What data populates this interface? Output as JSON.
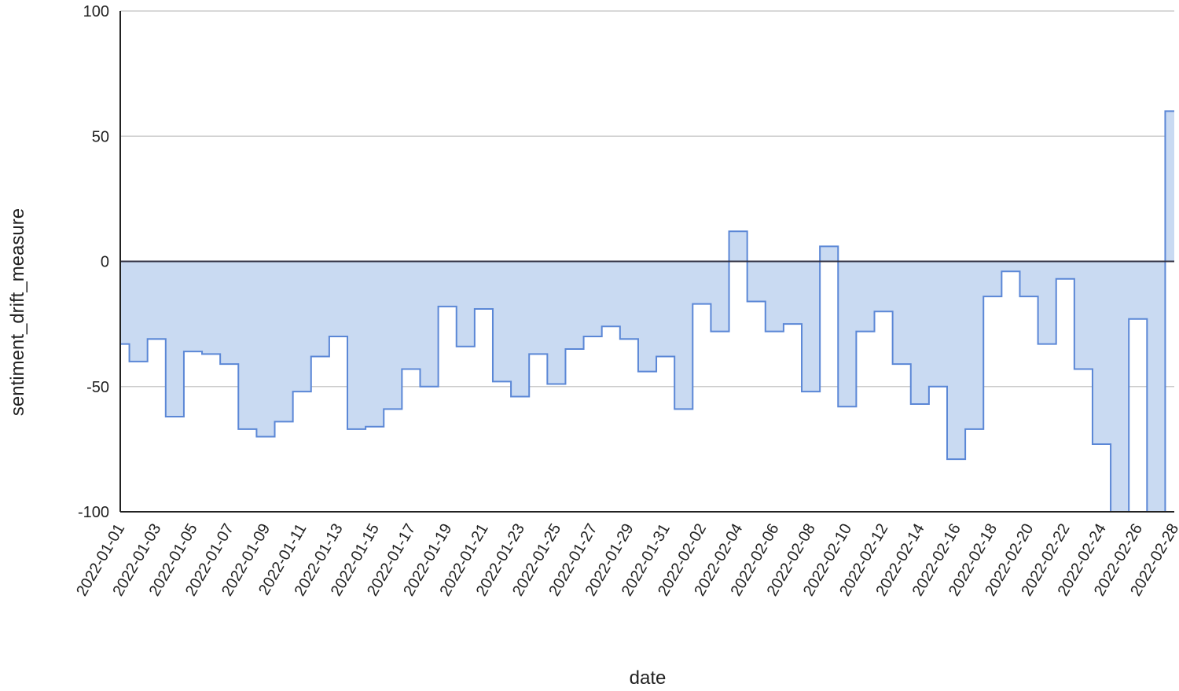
{
  "chart_data": {
    "type": "area",
    "interpolation": "step",
    "xlabel": "date",
    "ylabel": "sentiment_drift_measure",
    "ylim": [
      -100,
      100
    ],
    "yticks": [
      "100",
      "50",
      "0",
      "-50",
      "-100"
    ],
    "grid": true,
    "x": [
      "2022-01-01",
      "2022-01-02",
      "2022-01-03",
      "2022-01-04",
      "2022-01-05",
      "2022-01-06",
      "2022-01-07",
      "2022-01-08",
      "2022-01-09",
      "2022-01-10",
      "2022-01-11",
      "2022-01-12",
      "2022-01-13",
      "2022-01-14",
      "2022-01-15",
      "2022-01-16",
      "2022-01-17",
      "2022-01-18",
      "2022-01-19",
      "2022-01-20",
      "2022-01-21",
      "2022-01-22",
      "2022-01-23",
      "2022-01-24",
      "2022-01-25",
      "2022-01-26",
      "2022-01-27",
      "2022-01-28",
      "2022-01-29",
      "2022-01-30",
      "2022-01-31",
      "2022-02-01",
      "2022-02-02",
      "2022-02-03",
      "2022-02-04",
      "2022-02-05",
      "2022-02-06",
      "2022-02-07",
      "2022-02-08",
      "2022-02-09",
      "2022-02-10",
      "2022-02-11",
      "2022-02-12",
      "2022-02-13",
      "2022-02-14",
      "2022-02-15",
      "2022-02-16",
      "2022-02-17",
      "2022-02-18",
      "2022-02-19",
      "2022-02-20",
      "2022-02-21",
      "2022-02-22",
      "2022-02-23",
      "2022-02-24",
      "2022-02-25",
      "2022-02-26",
      "2022-02-27",
      "2022-02-28"
    ],
    "xtick_labels": [
      "2022-01-01",
      "2022-01-03",
      "2022-01-05",
      "2022-01-07",
      "2022-01-09",
      "2022-01-11",
      "2022-01-13",
      "2022-01-15",
      "2022-01-17",
      "2022-01-19",
      "2022-01-21",
      "2022-01-23",
      "2022-01-25",
      "2022-01-27",
      "2022-01-29",
      "2022-01-31",
      "2022-02-02",
      "2022-02-04",
      "2022-02-06",
      "2022-02-08",
      "2022-02-10",
      "2022-02-12",
      "2022-02-14",
      "2022-02-16",
      "2022-02-18",
      "2022-02-20",
      "2022-02-22",
      "2022-02-24",
      "2022-02-26",
      "2022-02-28"
    ],
    "series": [
      {
        "values": [
          -33,
          -40,
          -31,
          -62,
          -36,
          -37,
          -41,
          -67,
          -70,
          -64,
          -52,
          -38,
          -30,
          -67,
          -66,
          -59,
          -43,
          -50,
          -18,
          -34,
          -19,
          -48,
          -54,
          -37,
          -49,
          -35,
          -30,
          -26,
          -31,
          -44,
          -38,
          -59,
          -17,
          -28,
          12,
          -16,
          -28,
          -25,
          -52,
          6,
          -58,
          -28,
          -20,
          -41,
          -57,
          -50,
          -79,
          -67,
          -14,
          -4,
          -14,
          -33,
          -7,
          -43,
          -73,
          -100,
          -23,
          -100,
          60
        ]
      }
    ],
    "colors": {
      "line": "#5b87d6",
      "fill": "#c9daf2",
      "grid": "#cccccc",
      "zero_line": "#333344",
      "axis": "#222222"
    }
  }
}
